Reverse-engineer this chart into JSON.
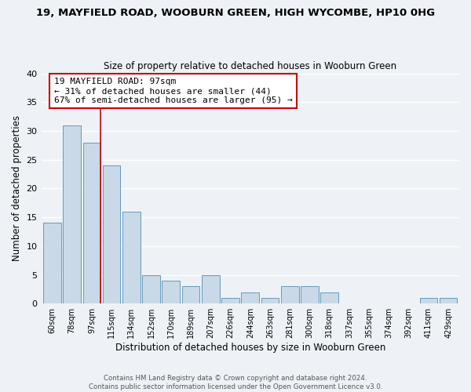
{
  "title": "19, MAYFIELD ROAD, WOOBURN GREEN, HIGH WYCOMBE, HP10 0HG",
  "subtitle": "Size of property relative to detached houses in Wooburn Green",
  "xlabel": "Distribution of detached houses by size in Wooburn Green",
  "ylabel": "Number of detached properties",
  "bar_labels": [
    "60sqm",
    "78sqm",
    "97sqm",
    "115sqm",
    "134sqm",
    "152sqm",
    "170sqm",
    "189sqm",
    "207sqm",
    "226sqm",
    "244sqm",
    "263sqm",
    "281sqm",
    "300sqm",
    "318sqm",
    "337sqm",
    "355sqm",
    "374sqm",
    "392sqm",
    "411sqm",
    "429sqm"
  ],
  "bar_values": [
    14,
    31,
    28,
    24,
    16,
    5,
    4,
    3,
    5,
    1,
    2,
    1,
    3,
    3,
    2,
    0,
    0,
    0,
    0,
    1,
    1
  ],
  "highlight_index": 2,
  "bar_color": "#c9d9e8",
  "bar_edge_color": "#6699bb",
  "vline_color": "#cc0000",
  "annotation_box_edge": "#cc0000",
  "annotation_text_line1": "19 MAYFIELD ROAD: 97sqm",
  "annotation_text_line2": "← 31% of detached houses are smaller (44)",
  "annotation_text_line3": "67% of semi-detached houses are larger (95) →",
  "ylim": [
    0,
    40
  ],
  "footer1": "Contains HM Land Registry data © Crown copyright and database right 2024.",
  "footer2": "Contains public sector information licensed under the Open Government Licence v3.0.",
  "bg_color": "#eef2f7",
  "grid_color": "#ffffff"
}
